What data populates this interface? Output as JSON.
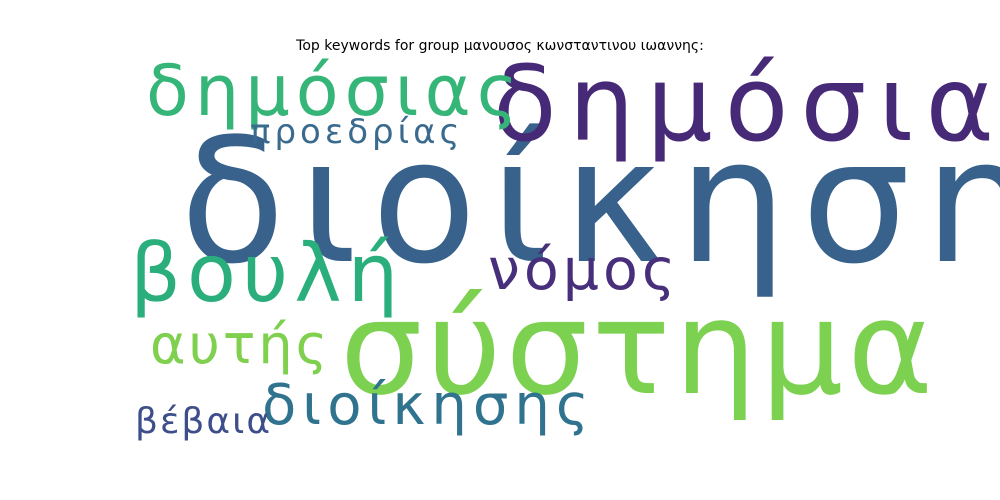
{
  "title": "Top keywords for group μανουσος κωνσταντινου ιωαννης:",
  "words": [
    {
      "text": "διοίκηση",
      "color": "#38628c"
    },
    {
      "text": "σύστημα",
      "color": "#7dd150"
    },
    {
      "text": "δημόσια",
      "color": "#472a77"
    },
    {
      "text": "δημόσιας",
      "color": "#35b578"
    },
    {
      "text": "προεδρίας",
      "color": "#3a6b8e"
    },
    {
      "text": "βουλή",
      "color": "#2aae7c"
    },
    {
      "text": "νόμος",
      "color": "#472f7c"
    },
    {
      "text": "αυτής",
      "color": "#7ed04e"
    },
    {
      "text": "διοίκησης",
      "color": "#2f738e"
    },
    {
      "text": "βέβαια",
      "color": "#3d4e8a"
    }
  ]
}
